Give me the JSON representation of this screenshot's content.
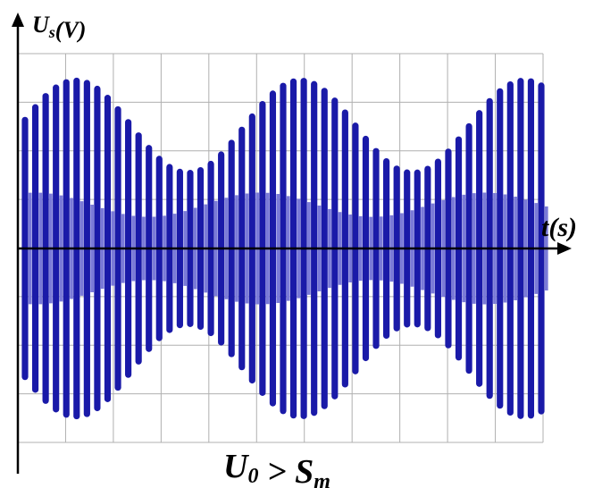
{
  "chart_data": {
    "type": "line",
    "title": "",
    "ylabel": "U_s(V)",
    "xlabel": "t(s)",
    "caption": "U_0 > S_m",
    "grid": true,
    "y_ticks_shown": false,
    "x_ticks_shown": false,
    "signal": {
      "description_free": true,
      "carrier_cycles": 50,
      "envelope_periods": 2.3,
      "envelope_max": 3.45,
      "envelope_min": 1.55,
      "inner_amplitude": 0.9,
      "grid_step": 1
    },
    "colors": {
      "carrier": "#1a1aa8",
      "inner": "#7a7ad8",
      "grid": "#b0b0b0",
      "axes": "#000000"
    }
  }
}
